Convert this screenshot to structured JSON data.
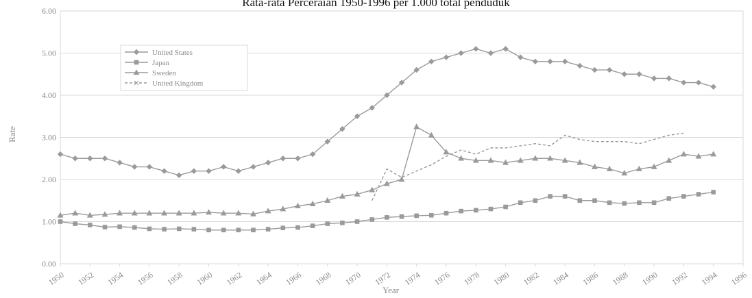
{
  "chart_data": {
    "type": "line",
    "title": "Rata-rata Perceraian 1950-1996 per 1.000 total penduduk",
    "xlabel": "Year",
    "ylabel": "Rate",
    "ylim": [
      0,
      6
    ],
    "xlim": [
      1950,
      1996
    ],
    "y_ticks": [
      "0.00",
      "1.00",
      "2.00",
      "3.00",
      "4.00",
      "5.00",
      "6.00"
    ],
    "x_ticks": [
      "1950",
      "1952",
      "1954",
      "1956",
      "1958",
      "1960",
      "1962",
      "1964",
      "1966",
      "1968",
      "1970",
      "1972",
      "1974",
      "1976",
      "1978",
      "1980",
      "1982",
      "1984",
      "1986",
      "1988",
      "1990",
      "1992",
      "1994",
      "1996"
    ],
    "grid": "horizontal",
    "legend_position": "top-left",
    "x": [
      1950,
      1951,
      1952,
      1953,
      1954,
      1955,
      1956,
      1957,
      1958,
      1959,
      1960,
      1961,
      1962,
      1963,
      1964,
      1965,
      1966,
      1967,
      1968,
      1969,
      1970,
      1971,
      1972,
      1973,
      1974,
      1975,
      1976,
      1977,
      1978,
      1979,
      1980,
      1981,
      1982,
      1983,
      1984,
      1985,
      1986,
      1987,
      1988,
      1989,
      1990,
      1991,
      1992,
      1993,
      1994
    ],
    "series": [
      {
        "name": "United States",
        "marker": "diamond",
        "values": [
          2.6,
          2.5,
          2.5,
          2.5,
          2.4,
          2.3,
          2.3,
          2.2,
          2.1,
          2.2,
          2.2,
          2.3,
          2.2,
          2.3,
          2.4,
          2.5,
          2.5,
          2.6,
          2.9,
          3.2,
          3.5,
          3.7,
          4.0,
          4.3,
          4.6,
          4.8,
          4.9,
          5.0,
          5.1,
          5.0,
          5.1,
          4.9,
          4.8,
          4.8,
          4.8,
          4.7,
          4.6,
          4.6,
          4.5,
          4.5,
          4.4,
          4.4,
          4.3,
          4.3,
          4.2
        ]
      },
      {
        "name": "Japan",
        "marker": "square",
        "values": [
          1.0,
          0.95,
          0.92,
          0.87,
          0.88,
          0.86,
          0.83,
          0.82,
          0.83,
          0.82,
          0.8,
          0.8,
          0.8,
          0.8,
          0.82,
          0.85,
          0.86,
          0.9,
          0.95,
          0.97,
          1.0,
          1.05,
          1.1,
          1.12,
          1.14,
          1.15,
          1.2,
          1.25,
          1.27,
          1.3,
          1.35,
          1.45,
          1.5,
          1.6,
          1.6,
          1.5,
          1.5,
          1.45,
          1.43,
          1.45,
          1.45,
          1.55,
          1.6,
          1.65,
          1.7
        ]
      },
      {
        "name": "Sweden",
        "marker": "triangle",
        "values": [
          1.15,
          1.2,
          1.15,
          1.17,
          1.2,
          1.2,
          1.2,
          1.2,
          1.2,
          1.2,
          1.22,
          1.2,
          1.2,
          1.18,
          1.25,
          1.3,
          1.37,
          1.42,
          1.5,
          1.6,
          1.65,
          1.75,
          1.9,
          2.0,
          3.25,
          3.05,
          2.65,
          2.5,
          2.45,
          2.45,
          2.4,
          2.45,
          2.5,
          2.5,
          2.45,
          2.4,
          2.3,
          2.25,
          2.15,
          2.25,
          2.3,
          2.45,
          2.6,
          2.55,
          2.6
        ]
      },
      {
        "name": "United Kingdom",
        "marker": "cross",
        "values": [
          null,
          null,
          null,
          null,
          null,
          null,
          null,
          null,
          null,
          null,
          null,
          null,
          null,
          null,
          null,
          null,
          null,
          null,
          null,
          null,
          null,
          1.5,
          2.25,
          2.05,
          2.2,
          2.35,
          2.55,
          2.7,
          2.6,
          2.75,
          2.75,
          2.8,
          2.85,
          2.8,
          3.05,
          2.95,
          2.9,
          2.9,
          2.9,
          2.85,
          2.95,
          3.05,
          3.1,
          null,
          null
        ]
      }
    ]
  },
  "colors": {
    "line": "#9a9a9a",
    "grid": "#d8d8d8",
    "text": "#8a8a8a"
  }
}
